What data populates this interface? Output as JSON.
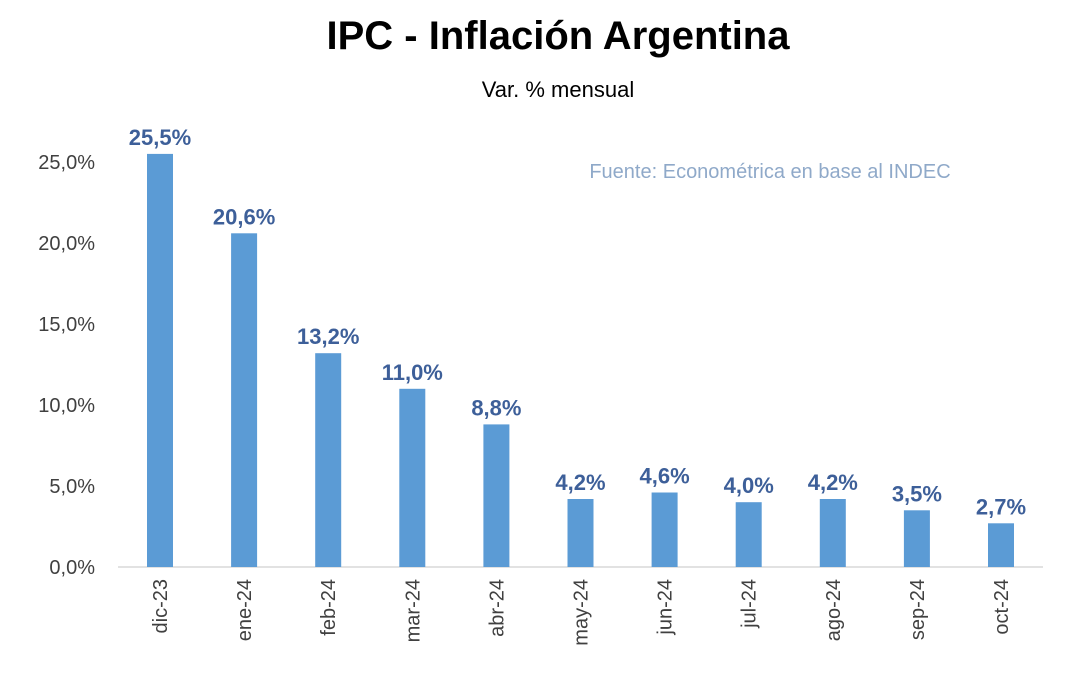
{
  "chart_data": {
    "type": "bar",
    "title": "IPC - Inflación Argentina",
    "subtitle": "Var. % mensual",
    "source": "Fuente: Econométrica en base al INDEC",
    "categories": [
      "dic-23",
      "ene-24",
      "feb-24",
      "mar-24",
      "abr-24",
      "may-24",
      "jun-24",
      "jul-24",
      "ago-24",
      "sep-24",
      "oct-24"
    ],
    "values": [
      25.5,
      20.6,
      13.2,
      11.0,
      8.8,
      4.2,
      4.6,
      4.0,
      4.2,
      3.5,
      2.7
    ],
    "data_labels": [
      "25,5%",
      "20,6%",
      "13,2%",
      "11,0%",
      "8,8%",
      "4,2%",
      "4,6%",
      "4,0%",
      "4,2%",
      "3,5%",
      "2,7%"
    ],
    "y_ticks": [
      0,
      5,
      10,
      15,
      20,
      25
    ],
    "y_tick_labels": [
      "0,0%",
      "5,0%",
      "10,0%",
      "15,0%",
      "20,0%",
      "25,0%"
    ],
    "ylim": [
      0,
      25.5
    ],
    "xlabel": "",
    "ylabel": "",
    "grid": false,
    "colors": {
      "bar": "#5b9bd5",
      "label": "#3d5f99",
      "source": "#8fa9c9",
      "axis": "#d9d9d9"
    }
  }
}
